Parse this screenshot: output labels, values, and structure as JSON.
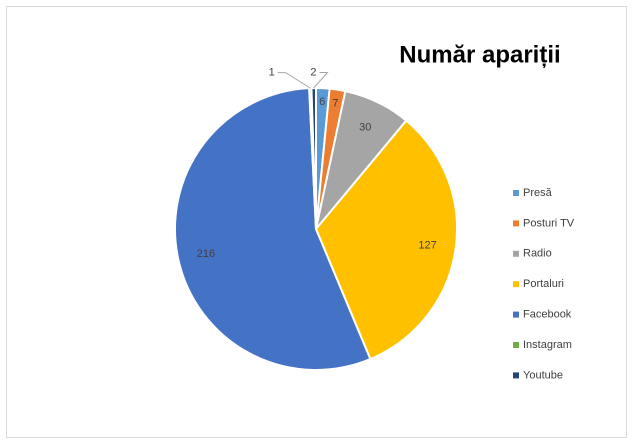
{
  "chart_data": {
    "type": "pie",
    "title": "Număr apariții",
    "categories": [
      "Presă",
      "Posturi TV",
      "Radio",
      "Portaluri",
      "Facebook",
      "Instagram",
      "Youtube"
    ],
    "values": [
      6,
      7,
      30,
      127,
      216,
      1,
      2
    ],
    "colors": [
      "#5b9bd5",
      "#ed7d31",
      "#a5a5a5",
      "#ffc000",
      "#4472c4",
      "#70ad47",
      "#264478"
    ],
    "legend": "right"
  }
}
